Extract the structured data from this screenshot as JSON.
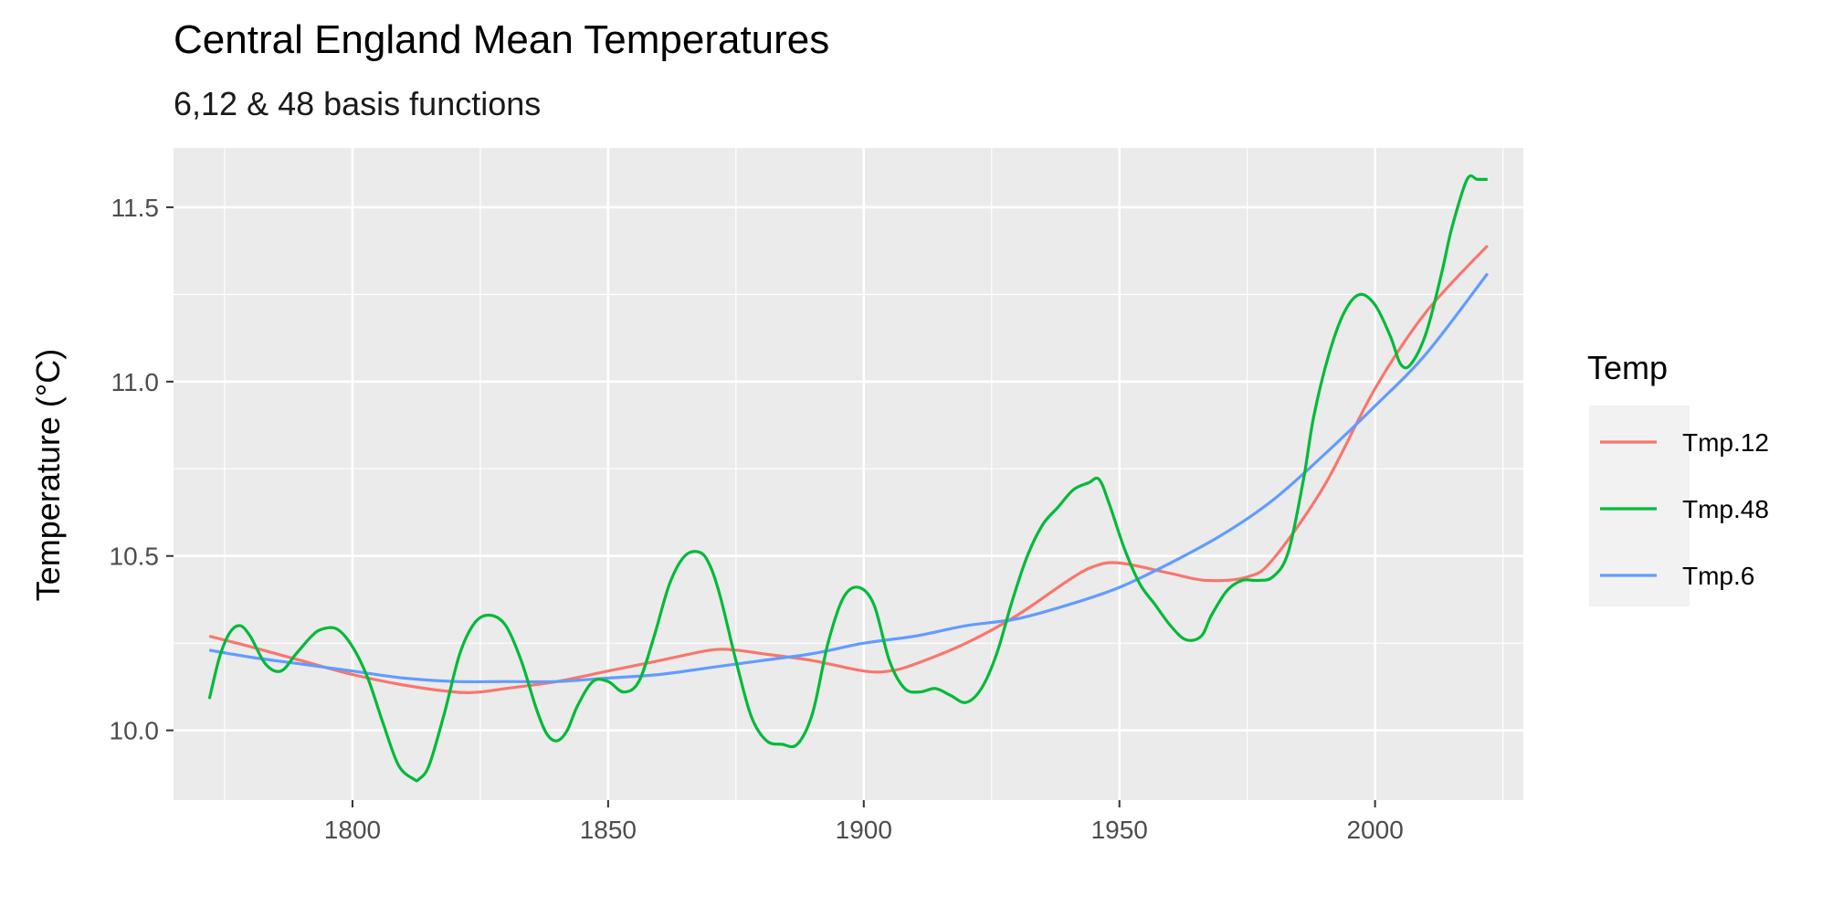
{
  "chart_data": {
    "type": "line",
    "title": "Central England Mean Temperatures",
    "subtitle": "6,12 & 48 basis functions",
    "xlabel": "",
    "ylabel": "Temperature (°C)",
    "xlim": [
      1765,
      2029
    ],
    "ylim": [
      9.8,
      11.67
    ],
    "x_ticks": [
      1800,
      1850,
      1900,
      1950,
      2000
    ],
    "y_ticks": [
      10.0,
      10.5,
      11.0,
      11.5
    ],
    "y_tick_labels": [
      "10.0",
      "10.5",
      "11.0",
      "11.5"
    ],
    "grid": true,
    "legend_position": "right",
    "legend_title": "Temp",
    "series": [
      {
        "name": "Tmp.12",
        "color": "#F8766D",
        "x": [
          1772,
          1780,
          1790,
          1800,
          1810,
          1820,
          1825,
          1830,
          1840,
          1850,
          1860,
          1870,
          1875,
          1880,
          1890,
          1900,
          1905,
          1910,
          1920,
          1930,
          1940,
          1945,
          1950,
          1960,
          1967,
          1975,
          1980,
          1990,
          2000,
          2010,
          2022
        ],
        "y": [
          10.27,
          10.24,
          10.2,
          10.16,
          10.13,
          10.11,
          10.11,
          10.12,
          10.14,
          10.17,
          10.2,
          10.23,
          10.23,
          10.22,
          10.2,
          10.17,
          10.17,
          10.19,
          10.25,
          10.33,
          10.43,
          10.47,
          10.48,
          10.45,
          10.43,
          10.44,
          10.49,
          10.7,
          10.98,
          11.2,
          11.39
        ]
      },
      {
        "name": "Tmp.48",
        "color": "#00BA38",
        "x": [
          1772,
          1774,
          1776,
          1778,
          1780,
          1783,
          1786,
          1789,
          1792,
          1794,
          1797,
          1800,
          1803,
          1806,
          1809,
          1812,
          1813,
          1815,
          1818,
          1821,
          1824,
          1827,
          1830,
          1833,
          1836,
          1838,
          1840,
          1842,
          1844,
          1847,
          1850,
          1853,
          1856,
          1859,
          1862,
          1865,
          1868,
          1870,
          1872,
          1875,
          1878,
          1881,
          1884,
          1887,
          1890,
          1893,
          1896,
          1899,
          1902,
          1905,
          1908,
          1911,
          1914,
          1917,
          1920,
          1923,
          1926,
          1929,
          1932,
          1935,
          1938,
          1941,
          1944,
          1946,
          1948,
          1951,
          1954,
          1957,
          1960,
          1963,
          1966,
          1968,
          1971,
          1974,
          1977,
          1980,
          1983,
          1986,
          1988,
          1991,
          1994,
          1997,
          2000,
          2003,
          2005,
          2007,
          2010,
          2013,
          2015,
          2018,
          2020,
          2022
        ],
        "y": [
          10.09,
          10.21,
          10.28,
          10.3,
          10.27,
          10.19,
          10.17,
          10.22,
          10.27,
          10.29,
          10.29,
          10.24,
          10.15,
          10.02,
          9.9,
          9.86,
          9.86,
          9.9,
          10.05,
          10.22,
          10.31,
          10.33,
          10.3,
          10.2,
          10.06,
          9.99,
          9.97,
          10.0,
          10.07,
          10.14,
          10.14,
          10.11,
          10.14,
          10.27,
          10.42,
          10.5,
          10.51,
          10.47,
          10.38,
          10.2,
          10.04,
          9.97,
          9.96,
          9.96,
          10.05,
          10.25,
          10.38,
          10.41,
          10.36,
          10.2,
          10.12,
          10.11,
          10.12,
          10.1,
          10.08,
          10.12,
          10.22,
          10.37,
          10.5,
          10.59,
          10.64,
          10.69,
          10.71,
          10.72,
          10.65,
          10.52,
          10.42,
          10.36,
          10.3,
          10.26,
          10.27,
          10.33,
          10.4,
          10.43,
          10.43,
          10.44,
          10.51,
          10.72,
          10.9,
          11.08,
          11.2,
          11.25,
          11.22,
          11.13,
          11.05,
          11.05,
          11.14,
          11.31,
          11.44,
          11.58,
          11.58,
          11.58
        ]
      },
      {
        "name": "Tmp.6",
        "color": "#619CFF",
        "x": [
          1772,
          1780,
          1790,
          1800,
          1810,
          1820,
          1830,
          1840,
          1850,
          1860,
          1870,
          1880,
          1890,
          1900,
          1910,
          1920,
          1930,
          1940,
          1950,
          1960,
          1970,
          1980,
          1990,
          2000,
          2010,
          2022
        ],
        "y": [
          10.23,
          10.21,
          10.19,
          10.17,
          10.15,
          10.14,
          10.14,
          10.14,
          10.15,
          10.16,
          10.18,
          10.2,
          10.22,
          10.25,
          10.27,
          10.3,
          10.32,
          10.36,
          10.41,
          10.48,
          10.56,
          10.66,
          10.79,
          10.93,
          11.08,
          11.31
        ]
      }
    ]
  }
}
